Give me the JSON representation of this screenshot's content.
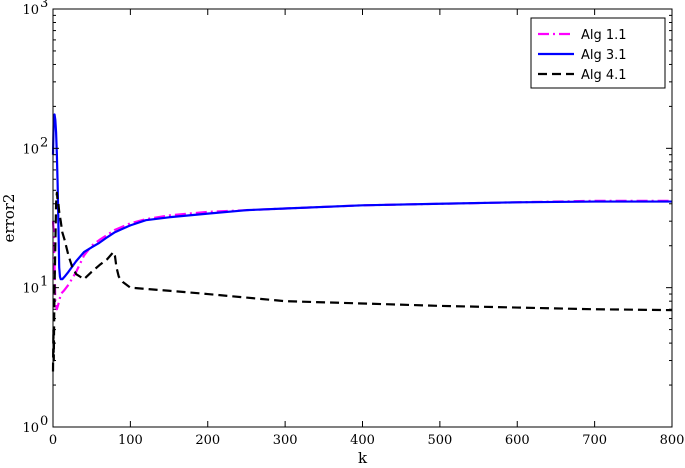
{
  "chart_data": {
    "type": "line",
    "xlabel": "k",
    "ylabel": "error2",
    "xlim": [
      0,
      800
    ],
    "ylim": [
      1,
      1000
    ],
    "yscale": "log",
    "grid": false,
    "legend_position": "top-right",
    "x_ticks": [
      0,
      100,
      200,
      300,
      400,
      500,
      600,
      700,
      800
    ],
    "y_ticks": [
      {
        "value": 1,
        "base": "10",
        "exp": "0"
      },
      {
        "value": 10,
        "base": "10",
        "exp": "1"
      },
      {
        "value": 100,
        "base": "10",
        "exp": "2"
      },
      {
        "value": 1000,
        "base": "10",
        "exp": "3"
      }
    ],
    "series": [
      {
        "name": "Alg 1.1",
        "color": "#ff00ff",
        "style": "dashdot",
        "x": [
          0,
          1,
          2,
          3,
          5,
          8,
          10,
          14,
          20,
          30,
          40,
          50,
          60,
          80,
          100,
          120,
          150,
          200,
          300,
          400,
          500,
          600,
          700,
          800
        ],
        "y": [
          30,
          25,
          14,
          8,
          7,
          8,
          9,
          9.5,
          10.5,
          13,
          17,
          20,
          22,
          26,
          29,
          31,
          33,
          35,
          37,
          39,
          40,
          41,
          42,
          42
        ]
      },
      {
        "name": "Alg 3.1",
        "color": "#0000ff",
        "style": "solid",
        "x": [
          0,
          1,
          2,
          3,
          4,
          5,
          6,
          7,
          8,
          9,
          10,
          12,
          15,
          20,
          30,
          40,
          50,
          60,
          70,
          80,
          90,
          100,
          120,
          150,
          200,
          250,
          300,
          400,
          500,
          600,
          700,
          800
        ],
        "y": [
          90,
          170,
          175,
          160,
          130,
          90,
          55,
          28,
          14,
          12,
          11.5,
          11.5,
          12,
          13,
          15.5,
          18,
          19.5,
          21,
          23,
          25,
          26.5,
          28,
          30.5,
          32,
          34,
          36,
          37,
          39,
          40,
          41,
          41.5,
          41.5
        ]
      },
      {
        "name": "Alg 4.1",
        "color": "#000000",
        "style": "dashed",
        "x": [
          0,
          0.5,
          1,
          1.5,
          2,
          3,
          4,
          5,
          6,
          7,
          8,
          10,
          12,
          15,
          20,
          25,
          30,
          35,
          40,
          50,
          60,
          70,
          78,
          80,
          82,
          85,
          90,
          100,
          150,
          200,
          300,
          400,
          500,
          600,
          700,
          800
        ],
        "y": [
          2.5,
          5,
          3,
          6,
          10,
          20,
          40,
          48,
          42,
          40,
          35,
          30,
          25,
          22,
          17,
          14,
          12.5,
          12,
          11.5,
          13,
          14.5,
          16,
          18,
          17,
          14,
          12,
          11,
          10,
          9.5,
          9,
          8,
          7.7,
          7.4,
          7.2,
          7.0,
          6.9
        ]
      }
    ]
  }
}
